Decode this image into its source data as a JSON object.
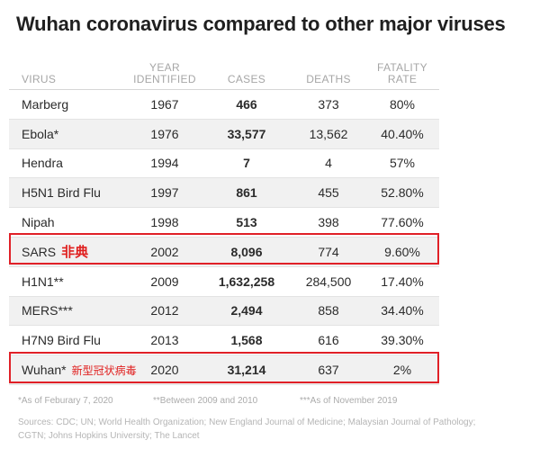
{
  "title": "Wuhan coronavirus compared to other major viruses",
  "headers": {
    "virus": "VIRUS",
    "year": [
      "YEAR",
      "IDENTIFIED"
    ],
    "cases": "CASES",
    "deaths": "DEATHS",
    "rate": [
      "FATALITY",
      "RATE"
    ]
  },
  "rows": [
    {
      "virus": "Marberg",
      "cn": "",
      "year": "1967",
      "cases": "466",
      "deaths": "373",
      "rate": "80%"
    },
    {
      "virus": "Ebola*",
      "cn": "",
      "year": "1976",
      "cases": "33,577",
      "deaths": "13,562",
      "rate": "40.40%"
    },
    {
      "virus": "Hendra",
      "cn": "",
      "year": "1994",
      "cases": "7",
      "deaths": "4",
      "rate": "57%"
    },
    {
      "virus": "H5N1 Bird Flu",
      "cn": "",
      "year": "1997",
      "cases": "861",
      "deaths": "455",
      "rate": "52.80%"
    },
    {
      "virus": "Nipah",
      "cn": "",
      "year": "1998",
      "cases": "513",
      "deaths": "398",
      "rate": "77.60%"
    },
    {
      "virus": "SARS",
      "cn": "非典",
      "year": "2002",
      "cases": "8,096",
      "deaths": "774",
      "rate": "9.60%"
    },
    {
      "virus": "H1N1**",
      "cn": "",
      "year": "2009",
      "cases": "1,632,258",
      "deaths": "284,500",
      "rate": "17.40%"
    },
    {
      "virus": "MERS***",
      "cn": "",
      "year": "2012",
      "cases": "2,494",
      "deaths": "858",
      "rate": "34.40%"
    },
    {
      "virus": "H7N9 Bird Flu",
      "cn": "",
      "year": "2013",
      "cases": "1,568",
      "deaths": "616",
      "rate": "39.30%"
    },
    {
      "virus": "Wuhan*",
      "cn": "新型冠状病毒",
      "year": "2020",
      "cases": "31,214",
      "deaths": "637",
      "rate": "2%"
    }
  ],
  "highlight_color": "#e02027",
  "footnotes": [
    "*As of Feburary 7, 2020",
    "**Between 2009 and 2010",
    "***As of November 2019"
  ],
  "sources": "Sources: CDC; UN; World Health Organization; New England Journal of Medicine; Malaysian Journal of Pathology; CGTN; Johns Hopkins University; The Lancet"
}
